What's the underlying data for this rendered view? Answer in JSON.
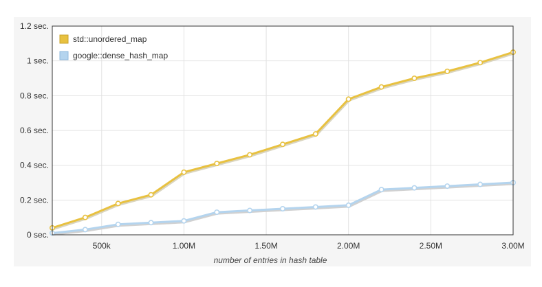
{
  "chart_data": {
    "type": "line",
    "title": "",
    "xlabel": "number of entries in hash table",
    "ylabel": "",
    "xlim": [
      200000,
      3000000
    ],
    "ylim": [
      0,
      1.2
    ],
    "grid": true,
    "legend_position": "top-left",
    "x_ticks": [
      {
        "value": 500000,
        "label": "500k"
      },
      {
        "value": 1000000,
        "label": "1.00M"
      },
      {
        "value": 1500000,
        "label": "1.50M"
      },
      {
        "value": 2000000,
        "label": "2.00M"
      },
      {
        "value": 2500000,
        "label": "2.50M"
      },
      {
        "value": 3000000,
        "label": "3.00M"
      }
    ],
    "y_ticks": [
      {
        "value": 0,
        "label": "0 sec."
      },
      {
        "value": 0.2,
        "label": "0.2 sec."
      },
      {
        "value": 0.4,
        "label": "0.4 sec."
      },
      {
        "value": 0.6,
        "label": "0.6 sec."
      },
      {
        "value": 0.8,
        "label": "0.8 sec."
      },
      {
        "value": 1.0,
        "label": "1 sec."
      },
      {
        "value": 1.2,
        "label": "1.2 sec."
      }
    ],
    "x": [
      200000,
      400000,
      600000,
      800000,
      1000000,
      1200000,
      1400000,
      1600000,
      1800000,
      2000000,
      2200000,
      2400000,
      2600000,
      2800000,
      3000000
    ],
    "series": [
      {
        "name": "std::unordered_map",
        "color": "#e8c140",
        "shadow": "#d6d0b8",
        "values": [
          0.04,
          0.1,
          0.18,
          0.23,
          0.36,
          0.41,
          0.46,
          0.52,
          0.58,
          0.78,
          0.85,
          0.9,
          0.94,
          0.99,
          1.05
        ]
      },
      {
        "name": "google::dense_hash_map",
        "color": "#b4d4ee",
        "shadow": "#cccccc",
        "values": [
          0.01,
          0.03,
          0.06,
          0.07,
          0.08,
          0.13,
          0.14,
          0.15,
          0.16,
          0.17,
          0.26,
          0.27,
          0.28,
          0.29,
          0.3
        ]
      }
    ]
  }
}
